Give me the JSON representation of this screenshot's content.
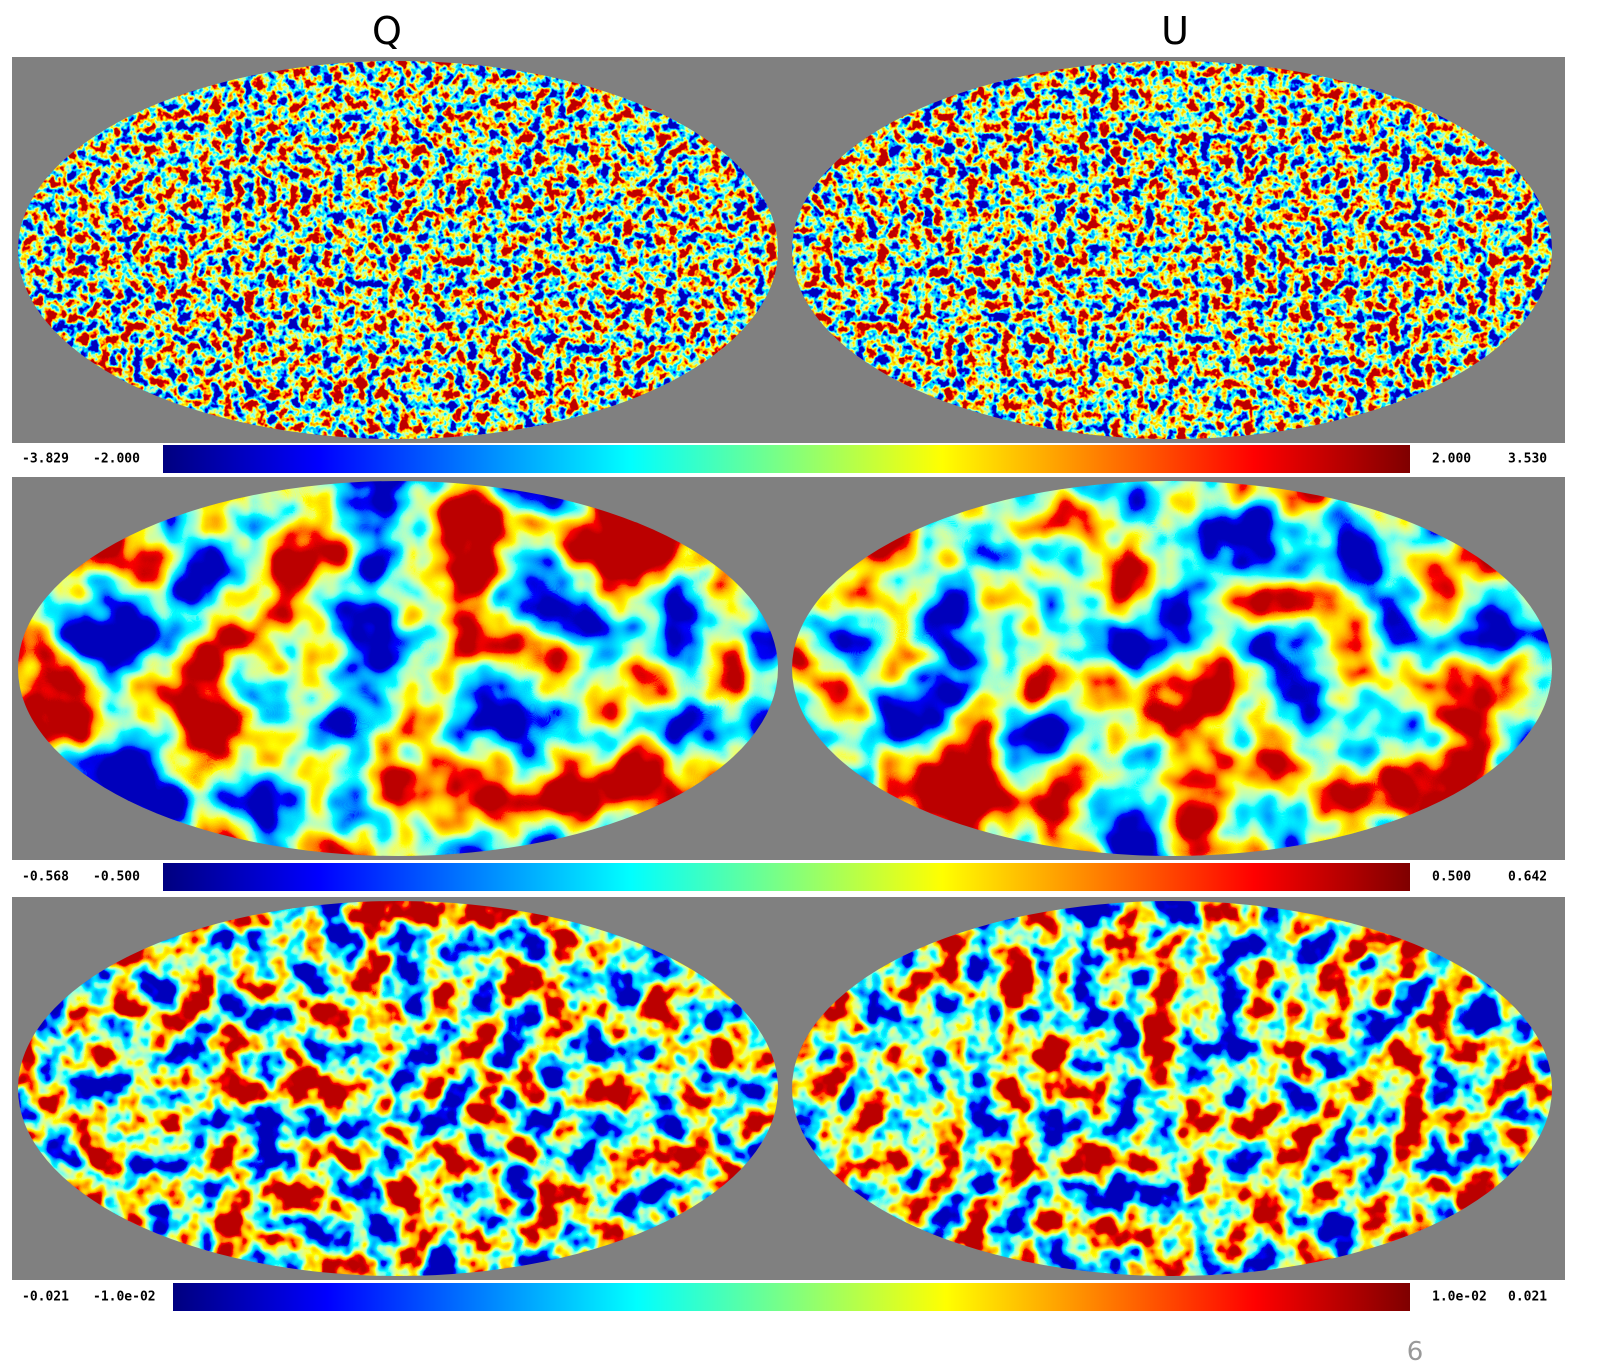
{
  "header": {
    "columns": [
      "Q",
      "U"
    ]
  },
  "rows": [
    {
      "colorbar": {
        "min": "-3.829",
        "low": "-2.000",
        "high": "2.000",
        "max": "3.530"
      }
    },
    {
      "colorbar": {
        "min": "-0.568",
        "low": "-0.500",
        "high": "0.500",
        "max": "0.642"
      }
    },
    {
      "colorbar": {
        "min": "-0.021",
        "low": "-1.0e-02",
        "high": "1.0e-02",
        "max": "0.021"
      }
    }
  ],
  "footer": {
    "page": "6"
  }
}
